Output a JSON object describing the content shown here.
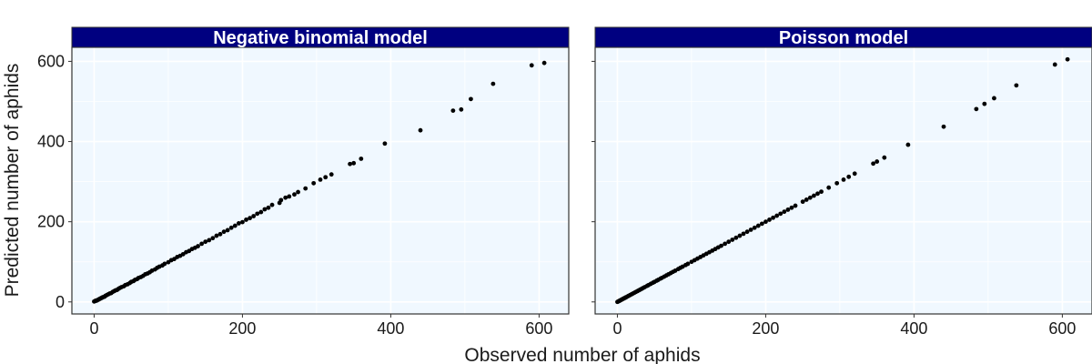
{
  "colors": {
    "strip_fill": "#000080",
    "panel_fill": "#f0f8ff",
    "grid": "#ffffff",
    "point": "#000000",
    "border": "#333333"
  },
  "chart_data": {
    "type": "scatter",
    "xlabel": "Observed number of aphids",
    "ylabel": "Predicted number of aphids",
    "xlim": [
      -30,
      640
    ],
    "ylim": [
      -30,
      635
    ],
    "xticks": [
      0,
      200,
      400,
      600
    ],
    "yticks": [
      0,
      200,
      400,
      600
    ],
    "grid": true,
    "panels": [
      {
        "title": "Negative binomial model",
        "points": [
          [
            0,
            1
          ],
          [
            1,
            2
          ],
          [
            2,
            3
          ],
          [
            3,
            3
          ],
          [
            4,
            4
          ],
          [
            5,
            5
          ],
          [
            6,
            6
          ],
          [
            7,
            7
          ],
          [
            8,
            8
          ],
          [
            9,
            9
          ],
          [
            10,
            10
          ],
          [
            11,
            11
          ],
          [
            12,
            12
          ],
          [
            14,
            13
          ],
          [
            15,
            15
          ],
          [
            17,
            17
          ],
          [
            19,
            19
          ],
          [
            21,
            21
          ],
          [
            23,
            22
          ],
          [
            25,
            25
          ],
          [
            27,
            27
          ],
          [
            29,
            29
          ],
          [
            31,
            30
          ],
          [
            33,
            33
          ],
          [
            35,
            35
          ],
          [
            37,
            37
          ],
          [
            40,
            39
          ],
          [
            42,
            42
          ],
          [
            45,
            44
          ],
          [
            48,
            47
          ],
          [
            50,
            50
          ],
          [
            53,
            52
          ],
          [
            55,
            55
          ],
          [
            58,
            57
          ],
          [
            60,
            60
          ],
          [
            63,
            62
          ],
          [
            66,
            65
          ],
          [
            69,
            69
          ],
          [
            72,
            71
          ],
          [
            75,
            74
          ],
          [
            78,
            78
          ],
          [
            82,
            81
          ],
          [
            85,
            85
          ],
          [
            88,
            88
          ],
          [
            92,
            91
          ],
          [
            95,
            95
          ],
          [
            100,
            99
          ],
          [
            104,
            104
          ],
          [
            108,
            107
          ],
          [
            112,
            112
          ],
          [
            116,
            115
          ],
          [
            120,
            119
          ],
          [
            124,
            124
          ],
          [
            128,
            127
          ],
          [
            132,
            132
          ],
          [
            136,
            135
          ],
          [
            140,
            139
          ],
          [
            145,
            145
          ],
          [
            150,
            150
          ],
          [
            155,
            154
          ],
          [
            160,
            159
          ],
          [
            165,
            165
          ],
          [
            170,
            169
          ],
          [
            175,
            175
          ],
          [
            180,
            179
          ],
          [
            185,
            185
          ],
          [
            190,
            190
          ],
          [
            195,
            196
          ],
          [
            200,
            199
          ],
          [
            205,
            205
          ],
          [
            210,
            209
          ],
          [
            215,
            214
          ],
          [
            220,
            220
          ],
          [
            225,
            224
          ],
          [
            230,
            231
          ],
          [
            235,
            235
          ],
          [
            240,
            242
          ],
          [
            250,
            247
          ],
          [
            252,
            254
          ],
          [
            258,
            260
          ],
          [
            263,
            263
          ],
          [
            270,
            268
          ],
          [
            275,
            274
          ],
          [
            285,
            283
          ],
          [
            296,
            296
          ],
          [
            305,
            305
          ],
          [
            312,
            311
          ],
          [
            320,
            318
          ],
          [
            345,
            344
          ],
          [
            350,
            346
          ],
          [
            360,
            357
          ],
          [
            392,
            395
          ],
          [
            440,
            428
          ],
          [
            484,
            477
          ],
          [
            495,
            480
          ],
          [
            508,
            506
          ],
          [
            538,
            544
          ],
          [
            590,
            590
          ],
          [
            607,
            596
          ]
        ]
      },
      {
        "title": "Poisson model",
        "points": [
          [
            0,
            0
          ],
          [
            1,
            1
          ],
          [
            2,
            2
          ],
          [
            3,
            3
          ],
          [
            4,
            4
          ],
          [
            5,
            5
          ],
          [
            6,
            6
          ],
          [
            7,
            7
          ],
          [
            8,
            8
          ],
          [
            9,
            9
          ],
          [
            10,
            10
          ],
          [
            11,
            11
          ],
          [
            12,
            12
          ],
          [
            14,
            14
          ],
          [
            15,
            15
          ],
          [
            17,
            17
          ],
          [
            19,
            19
          ],
          [
            21,
            21
          ],
          [
            23,
            23
          ],
          [
            25,
            25
          ],
          [
            27,
            27
          ],
          [
            29,
            29
          ],
          [
            31,
            31
          ],
          [
            33,
            33
          ],
          [
            35,
            35
          ],
          [
            37,
            37
          ],
          [
            40,
            40
          ],
          [
            42,
            42
          ],
          [
            45,
            45
          ],
          [
            48,
            48
          ],
          [
            50,
            50
          ],
          [
            53,
            53
          ],
          [
            55,
            55
          ],
          [
            58,
            58
          ],
          [
            60,
            60
          ],
          [
            63,
            63
          ],
          [
            66,
            66
          ],
          [
            69,
            69
          ],
          [
            72,
            72
          ],
          [
            75,
            75
          ],
          [
            78,
            78
          ],
          [
            82,
            82
          ],
          [
            85,
            85
          ],
          [
            88,
            88
          ],
          [
            92,
            92
          ],
          [
            95,
            95
          ],
          [
            100,
            100
          ],
          [
            104,
            104
          ],
          [
            108,
            108
          ],
          [
            112,
            112
          ],
          [
            116,
            116
          ],
          [
            120,
            120
          ],
          [
            124,
            124
          ],
          [
            128,
            128
          ],
          [
            132,
            132
          ],
          [
            136,
            136
          ],
          [
            140,
            140
          ],
          [
            145,
            145
          ],
          [
            150,
            150
          ],
          [
            155,
            155
          ],
          [
            160,
            160
          ],
          [
            165,
            165
          ],
          [
            170,
            170
          ],
          [
            175,
            175
          ],
          [
            180,
            180
          ],
          [
            185,
            185
          ],
          [
            190,
            190
          ],
          [
            195,
            195
          ],
          [
            200,
            200
          ],
          [
            205,
            205
          ],
          [
            210,
            210
          ],
          [
            215,
            215
          ],
          [
            220,
            220
          ],
          [
            225,
            225
          ],
          [
            230,
            230
          ],
          [
            235,
            235
          ],
          [
            240,
            240
          ],
          [
            250,
            250
          ],
          [
            255,
            255
          ],
          [
            260,
            260
          ],
          [
            265,
            265
          ],
          [
            270,
            270
          ],
          [
            275,
            275
          ],
          [
            285,
            285
          ],
          [
            296,
            296
          ],
          [
            305,
            305
          ],
          [
            312,
            312
          ],
          [
            320,
            320
          ],
          [
            345,
            345
          ],
          [
            350,
            350
          ],
          [
            360,
            360
          ],
          [
            392,
            392
          ],
          [
            440,
            437
          ],
          [
            484,
            481
          ],
          [
            495,
            494
          ],
          [
            508,
            508
          ],
          [
            538,
            540
          ],
          [
            590,
            592
          ],
          [
            607,
            605
          ]
        ]
      }
    ]
  }
}
